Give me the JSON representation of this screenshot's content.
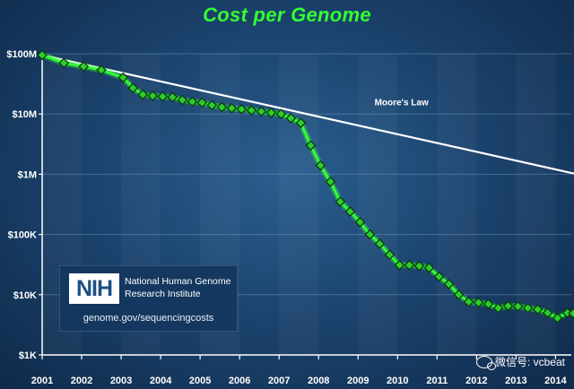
{
  "chart_data": {
    "type": "line",
    "title": "Cost per Genome",
    "xlabel": "",
    "ylabel": "",
    "y_scale": "log",
    "ylim": [
      1000,
      100000000
    ],
    "y_ticks": [
      {
        "value": 100000000,
        "label": "$100M"
      },
      {
        "value": 10000000,
        "label": "$10M"
      },
      {
        "value": 1000000,
        "label": "$1M"
      },
      {
        "value": 100000,
        "label": "$100K"
      },
      {
        "value": 10000,
        "label": "$10K"
      },
      {
        "value": 1000,
        "label": "$1K"
      }
    ],
    "xlim": [
      2001.0,
      2014.4
    ],
    "x_ticks": [
      {
        "value": 2001.0,
        "label": "2001"
      },
      {
        "value": 2002.0,
        "label": "2002"
      },
      {
        "value": 2003.0,
        "label": "2003"
      },
      {
        "value": 2004.0,
        "label": "2004"
      },
      {
        "value": 2005.0,
        "label": "2005"
      },
      {
        "value": 2006.0,
        "label": "2006"
      },
      {
        "value": 2007.0,
        "label": "2007"
      },
      {
        "value": 2008.0,
        "label": "2008"
      },
      {
        "value": 2009.0,
        "label": "2009"
      },
      {
        "value": 2010.0,
        "label": "2010"
      },
      {
        "value": 2011.0,
        "label": "2011"
      },
      {
        "value": 2012.0,
        "label": "2012"
      },
      {
        "value": 2013.0,
        "label": "2013"
      },
      {
        "value": 2014.0,
        "label": "2014"
      }
    ],
    "grid": true,
    "colors": {
      "cost": "#33ff33",
      "moore": "#ffffff",
      "marker_fill": "#2ecc2e",
      "marker_stroke": "#0a3a0a"
    },
    "series": [
      {
        "name": "",
        "points": [
          [
            2001.0,
            95263072
          ],
          [
            2001.55,
            70175437
          ],
          [
            2002.05,
            61448422
          ],
          [
            2002.5,
            53751684
          ],
          [
            2003.05,
            40157716
          ],
          [
            2003.3,
            27000000
          ],
          [
            2003.55,
            21000000
          ],
          [
            2003.8,
            20000000
          ],
          [
            2004.05,
            19500000
          ],
          [
            2004.3,
            19000000
          ],
          [
            2004.55,
            17000000
          ],
          [
            2004.8,
            16000000
          ],
          [
            2005.05,
            15500000
          ],
          [
            2005.3,
            14000000
          ],
          [
            2005.55,
            13000000
          ],
          [
            2005.8,
            12500000
          ],
          [
            2006.05,
            12000000
          ],
          [
            2006.3,
            11500000
          ],
          [
            2006.55,
            11000000
          ],
          [
            2006.8,
            10500000
          ],
          [
            2007.05,
            10000000
          ],
          [
            2007.3,
            8500000
          ],
          [
            2007.55,
            7100000
          ],
          [
            2007.8,
            3000000
          ],
          [
            2008.05,
            1400000
          ],
          [
            2008.3,
            750000
          ],
          [
            2008.55,
            350000
          ],
          [
            2008.8,
            240000
          ],
          [
            2009.05,
            160000
          ],
          [
            2009.3,
            100000
          ],
          [
            2009.55,
            70000
          ],
          [
            2009.8,
            46000
          ],
          [
            2010.05,
            31000
          ],
          [
            2010.3,
            31000
          ],
          [
            2010.55,
            30000
          ],
          [
            2010.8,
            28000
          ],
          [
            2011.05,
            20000
          ],
          [
            2011.3,
            15000
          ],
          [
            2011.55,
            10000
          ],
          [
            2011.8,
            7600
          ],
          [
            2012.05,
            7400
          ],
          [
            2012.3,
            7000
          ],
          [
            2012.55,
            6000
          ],
          [
            2012.8,
            6500
          ],
          [
            2013.05,
            6400
          ],
          [
            2013.3,
            6000
          ],
          [
            2013.55,
            5700
          ],
          [
            2013.8,
            5000
          ],
          [
            2014.05,
            4100
          ],
          [
            2014.3,
            5000
          ],
          [
            2014.45,
            4900
          ]
        ]
      },
      {
        "name": "Moore's Law",
        "points": [
          [
            2001.0,
            95263072
          ],
          [
            2014.55,
            1000000
          ]
        ]
      }
    ],
    "annotations": [
      {
        "text": "Moore's Law",
        "x": 2010.1,
        "y": 14000000
      }
    ]
  },
  "logo": {
    "mark": "NIH",
    "org_line1": "National Human Genome",
    "org_line2": "Research Institute",
    "url": "genome.gov/sequencingcosts"
  },
  "watermark": {
    "text": "微信号: vcbeat",
    "icon": "wechat-icon"
  }
}
